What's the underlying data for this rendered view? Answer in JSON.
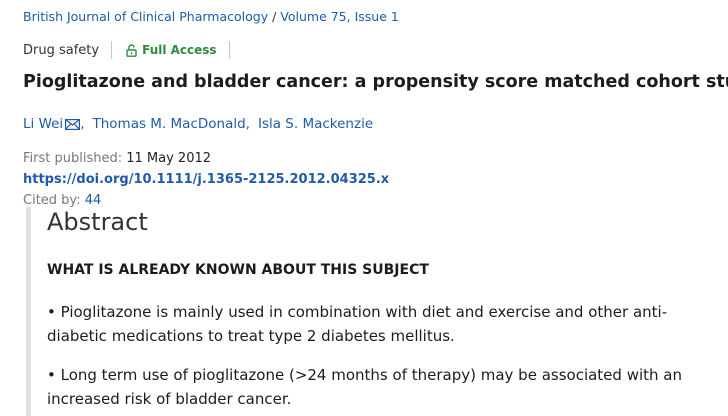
{
  "journal": {
    "name": "British Journal of Clinical Pharmacology",
    "separator": " / ",
    "issue": "Volume 75, Issue 1"
  },
  "article_type": "Drug safety",
  "access_badge": {
    "label": "Full Access",
    "icon": "lock-open-icon",
    "color": "#2e8b40"
  },
  "title": "Pioglitazone and bladder cancer: a propensity score matched cohort study",
  "authors": [
    {
      "name": "Li Wei",
      "has_email_icon": true
    },
    {
      "name": "Thomas M. MacDonald"
    },
    {
      "name": "Isla S. Mackenzie"
    }
  ],
  "author_separator": ",",
  "publication": {
    "first_published_label": "First published:",
    "first_published_date": "11 May 2012",
    "doi": "https://doi.org/10.1111/j.1365-2125.2012.04325.x",
    "cited_by_label": "Cited by:",
    "cited_by_count": "44"
  },
  "abstract": {
    "heading": "Abstract",
    "section_heading": "WHAT IS ALREADY KNOWN ABOUT THIS SUBJECT",
    "paragraphs": [
      "• Pioglitazone is mainly used in combination with diet and exercise and other anti-diabetic medications to treat type 2 diabetes mellitus.",
      "• Long term use of pioglitazone (>24 months of therapy) may be associated with an increased risk of bladder cancer."
    ]
  },
  "colors": {
    "link": "#1f5ba8",
    "access_green": "#2e8b40",
    "text": "#1c1c1c"
  }
}
